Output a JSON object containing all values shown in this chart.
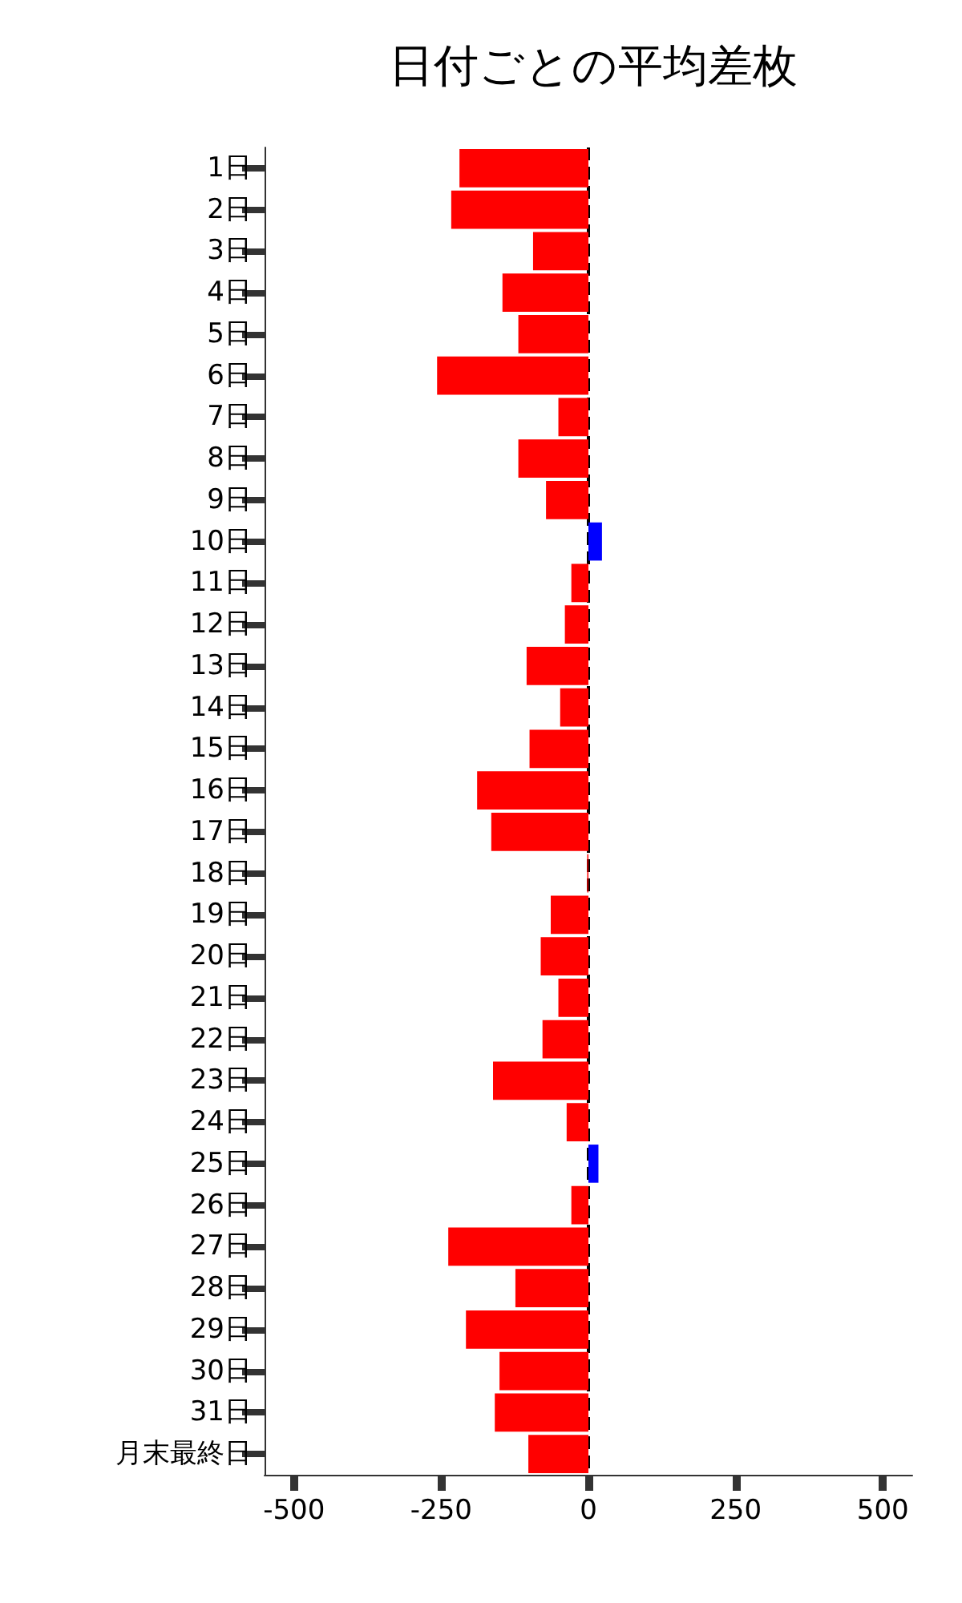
{
  "chart_data": {
    "type": "bar",
    "title": "日付ごとの平均差枚",
    "orientation": "horizontal",
    "categories": [
      "1日",
      "2日",
      "3日",
      "4日",
      "5日",
      "6日",
      "7日",
      "8日",
      "9日",
      "10日",
      "11日",
      "12日",
      "13日",
      "14日",
      "15日",
      "16日",
      "17日",
      "18日",
      "19日",
      "20日",
      "21日",
      "22日",
      "23日",
      "24日",
      "25日",
      "26日",
      "27日",
      "28日",
      "29日",
      "30日",
      "31日",
      "月末最終日"
    ],
    "values": [
      -219,
      -233,
      -94,
      -146,
      -119,
      -257,
      -51,
      -119,
      -72,
      23,
      -29,
      -40,
      -105,
      -48,
      -100,
      -189,
      -165,
      -2,
      -64,
      -81,
      -51,
      -78,
      -162,
      -37,
      17,
      -29,
      -238,
      -124,
      -208,
      -151,
      -159,
      -102
    ],
    "colors": [
      "#ff0000",
      "#ff0000",
      "#ff0000",
      "#ff0000",
      "#ff0000",
      "#ff0000",
      "#ff0000",
      "#ff0000",
      "#ff0000",
      "#0000ff",
      "#ff0000",
      "#ff0000",
      "#ff0000",
      "#ff0000",
      "#ff0000",
      "#ff0000",
      "#ff0000",
      "#ff0000",
      "#ff0000",
      "#ff0000",
      "#ff0000",
      "#ff0000",
      "#ff0000",
      "#ff0000",
      "#0000ff",
      "#ff0000",
      "#ff0000",
      "#ff0000",
      "#ff0000",
      "#ff0000",
      "#ff0000",
      "#ff0000"
    ],
    "xlim": [
      -550,
      550
    ],
    "xticks": [
      -500,
      -250,
      0,
      250,
      500
    ],
    "ref_lines": [
      {
        "axis": "x",
        "value": 0,
        "color": "#000000",
        "line_style": "dashed"
      }
    ],
    "grid": false
  }
}
